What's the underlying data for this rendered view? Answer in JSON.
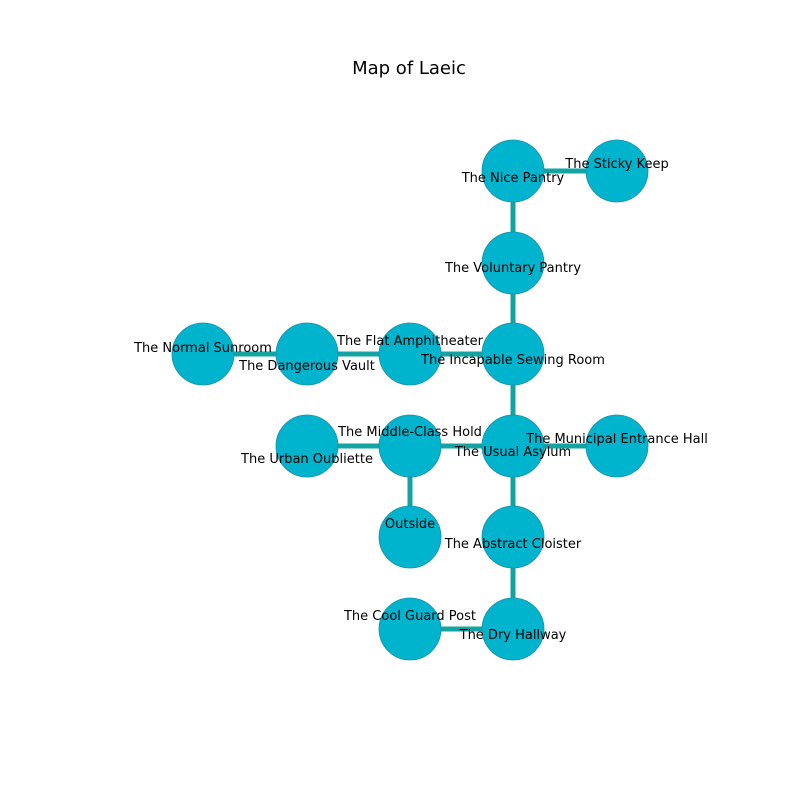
{
  "title": "Map of Laeic",
  "colors": {
    "node_fill": "#00b4cd",
    "node_stroke": "#1a8fa8",
    "edge": "#14a3a3",
    "background": "#ffffff"
  },
  "rooms": [
    {
      "id": "nice-pantry",
      "name": "The Nice Pantry"
    },
    {
      "id": "sticky-keep",
      "name": "The Sticky Keep"
    },
    {
      "id": "voluntary-pantry",
      "name": "The Voluntary Pantry"
    },
    {
      "id": "normal-sunroom",
      "name": "The Normal Sunroom"
    },
    {
      "id": "dangerous-vault",
      "name": "The Dangerous Vault"
    },
    {
      "id": "flat-amphitheater",
      "name": "The Flat Amphitheater"
    },
    {
      "id": "incapable-sewing-room",
      "name": "The Incapable Sewing Room"
    },
    {
      "id": "urban-oubliette",
      "name": "The Urban Oubliette"
    },
    {
      "id": "middle-class-hold",
      "name": "The Middle-Class Hold"
    },
    {
      "id": "usual-asylum",
      "name": "The Usual Asylum"
    },
    {
      "id": "municipal-entrance-hall",
      "name": "The Municipal Entrance Hall"
    },
    {
      "id": "outside",
      "name": "Outside"
    },
    {
      "id": "abstract-cloister",
      "name": "The Abstract Cloister"
    },
    {
      "id": "cool-guard-post",
      "name": "The Cool Guard Post"
    },
    {
      "id": "dry-hallway",
      "name": "The Dry Hallway"
    }
  ],
  "connections": [
    [
      "nice-pantry",
      "sticky-keep"
    ],
    [
      "nice-pantry",
      "voluntary-pantry"
    ],
    [
      "voluntary-pantry",
      "incapable-sewing-room"
    ],
    [
      "normal-sunroom",
      "dangerous-vault"
    ],
    [
      "dangerous-vault",
      "flat-amphitheater"
    ],
    [
      "flat-amphitheater",
      "incapable-sewing-room"
    ],
    [
      "incapable-sewing-room",
      "usual-asylum"
    ],
    [
      "urban-oubliette",
      "middle-class-hold"
    ],
    [
      "middle-class-hold",
      "usual-asylum"
    ],
    [
      "usual-asylum",
      "municipal-entrance-hall"
    ],
    [
      "middle-class-hold",
      "outside"
    ],
    [
      "usual-asylum",
      "abstract-cloister"
    ],
    [
      "abstract-cloister",
      "dry-hallway"
    ],
    [
      "cool-guard-post",
      "dry-hallway"
    ]
  ]
}
